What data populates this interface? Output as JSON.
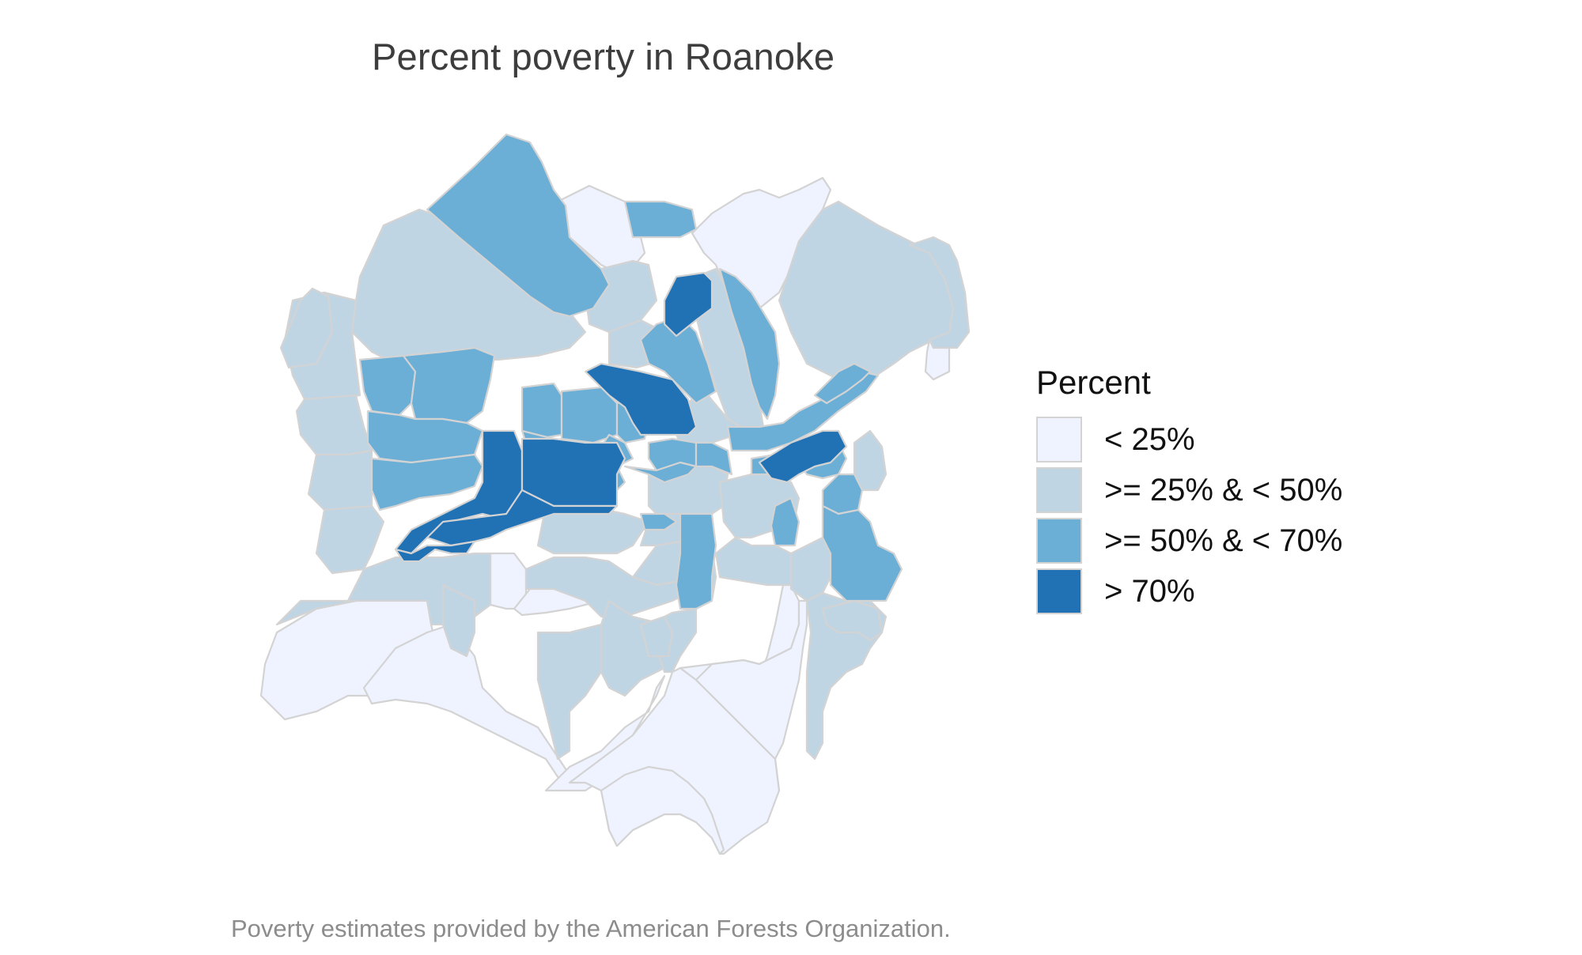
{
  "title": "Percent poverty in Roanoke",
  "caption": "Poverty estimates provided by the American Forests Organization.",
  "border_color": "#d3d3d3",
  "legend": {
    "title": "Percent",
    "items": [
      {
        "label": "< 25%",
        "color": "#eff3ff"
      },
      {
        "label": ">= 25% & < 50%",
        "color": "#c0d5e4"
      },
      {
        "label": ">= 50% & < 70%",
        "color": "#6baed6"
      },
      {
        "label": "> 70%",
        "color": "#2171b5"
      }
    ]
  }
}
